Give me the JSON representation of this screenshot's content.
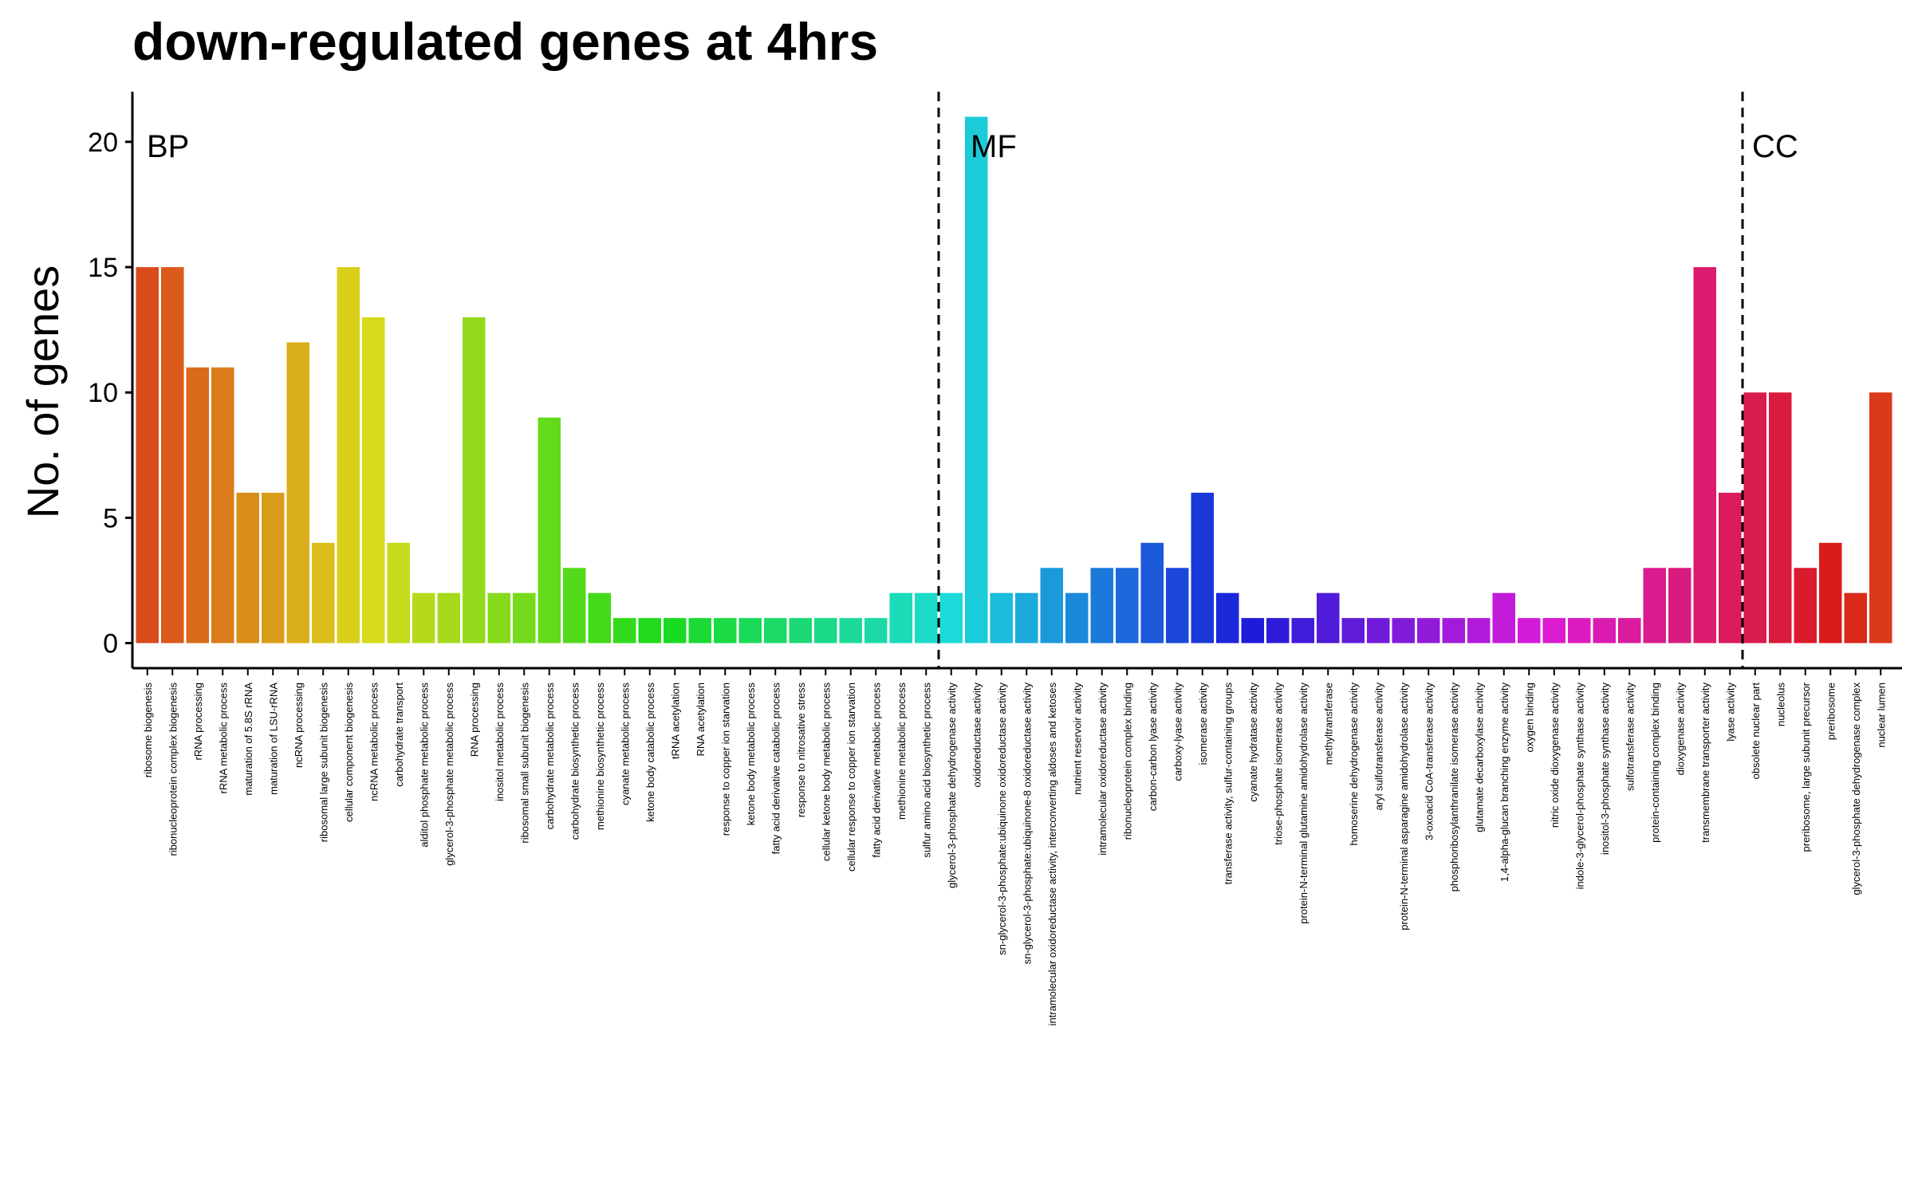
{
  "chart_data": {
    "type": "bar",
    "title": "down-regulated genes at 4hrs",
    "xlabel": "",
    "ylabel": "No. of genes",
    "ylim": [
      -1,
      22
    ],
    "yticks": [
      0,
      5,
      10,
      15,
      20
    ],
    "grid": false,
    "legend": "none",
    "group_labels": [
      "BP",
      "MF",
      "CC"
    ],
    "categories": [
      "ribosome biogenesis",
      "ribonucleoprotein complex biogenesis",
      "rRNA processing",
      "rRNA metabolic process",
      "maturation of 5.8S rRNA",
      "maturation of LSU-rRNA",
      "ncRNA processing",
      "ribosomal large subunit biogenesis",
      "cellular component biogenesis",
      "ncRNA metabolic process",
      "carbohydrate transport",
      "alditol phosphate metabolic process",
      "glycerol-3-phosphate metabolic process",
      "RNA processing",
      "inositol metabolic process",
      "ribosomal small subunit biogenesis",
      "carbohydrate metabolic process",
      "carbohydrate biosynthetic process",
      "methionine biosynthetic process",
      "cyanate metabolic process",
      "ketone body catabolic process",
      "tRNA acetylation",
      "RNA acetylation",
      "response to copper ion starvation",
      "ketone body metabolic process",
      "fatty acid derivative catabolic process",
      "response to nitrosative stress",
      "cellular ketone body metabolic process",
      "cellular response to copper ion starvation",
      "fatty acid derivative metabolic process",
      "methionine metabolic process",
      "sulfur amino acid biosynthetic process",
      "glycerol-3-phosphate dehydrogenase activity",
      "oxidoreductase activity",
      "sn-glycerol-3-phosphate:ubiquinone oxidoreductase activity",
      "sn-glycerol-3-phosphate:ubiquinone-8 oxidoreductase activity",
      "intramolecular oxidoreductase activity, interconverting aldoses and ketoses",
      "nutrient reservoir activity",
      "intramolecular oxidoreductase activity",
      "ribonucleoprotein complex binding",
      "carbon-carbon lyase activity",
      "carboxy-lyase activity",
      "isomerase activity",
      "transferase activity, sulfur-containing groups",
      "cyanate hydratase activity",
      "triose-phosphate isomerase activity",
      "protein-N-terminal glutamine amidohydrolase activity",
      "methyltransferase",
      "homoserine dehydrogenase activity",
      "aryl sulfotransferase activity",
      "protein-N-terminal asparagine amidohydrolase activity",
      "3-oxoacid CoA-transferase activity",
      "phosphoribosylanthranilate isomerase activity",
      "glutamate decarboxylase activity",
      "1,4-alpha-glucan branching enzyme activity",
      "oxygen binding",
      "nitric oxide dioxygenase activity",
      "indole-3-glycerol-phosphate synthase activity",
      "inositol-3-phosphate synthase activity",
      "sulfotransferase activity",
      "protein-containing complex binding",
      "dioxygenase activity",
      "transmembrane transporter activity",
      "lyase activity",
      "obsolete nuclear part",
      "nucleolus",
      "preribosome, large subunit precursor",
      "preribosome",
      "glycerol-3-phosphate dehydrogenase complex",
      "nuclear lumen"
    ],
    "values": [
      15,
      15,
      11,
      11,
      6,
      6,
      12,
      4,
      15,
      13,
      4,
      2,
      2,
      13,
      2,
      2,
      9,
      3,
      2,
      1,
      1,
      1,
      1,
      1,
      1,
      1,
      1,
      1,
      1,
      1,
      2,
      2,
      2,
      21,
      2,
      2,
      3,
      2,
      3,
      3,
      4,
      3,
      6,
      2,
      1,
      1,
      1,
      2,
      1,
      1,
      1,
      1,
      1,
      1,
      2,
      1,
      1,
      1,
      1,
      1,
      3,
      3,
      15,
      6,
      10,
      10,
      3,
      4,
      2,
      10
    ],
    "group_boundaries_after_index": [
      31,
      63
    ]
  }
}
